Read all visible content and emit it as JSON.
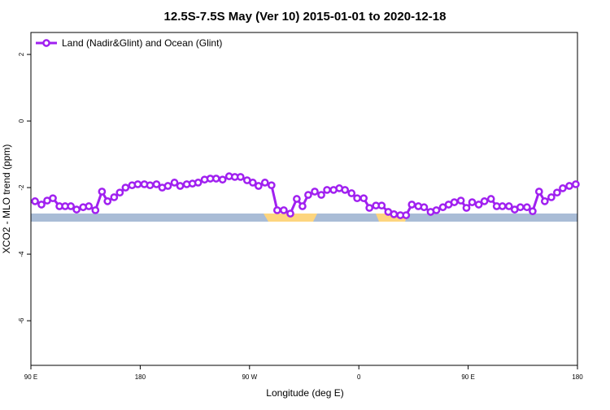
{
  "chart_data": {
    "type": "line",
    "title": "12.5S-7.5S May (Ver 10)   2015-01-01 to 2020-12-18",
    "x_label": "Longitude (deg E)",
    "y_label": "XCO2 - MLO trend (ppm)",
    "xlim": [
      90,
      540
    ],
    "ylim": [
      -7.34,
      2.66
    ],
    "xticks": [
      {
        "value": 90,
        "label": "90 E"
      },
      {
        "value": 180,
        "label": "180"
      },
      {
        "value": 270,
        "label": "90 W"
      },
      {
        "value": 360,
        "label": "0"
      },
      {
        "value": 450,
        "label": "90 E"
      },
      {
        "value": 540,
        "label": "180"
      }
    ],
    "yticks": [
      2,
      0,
      -2,
      -4,
      -6
    ],
    "legend_position": "top-left",
    "series": [
      {
        "name": "Land (Nadir&Glint) and Ocean (Glint)",
        "color": "#a020f0",
        "x": [
          93.4,
          98.7,
          103.4,
          108.1,
          113.5,
          118.2,
          122.9,
          127.6,
          133,
          137.7,
          143.1,
          148.5,
          153.1,
          158.5,
          163.2,
          167.9,
          173.3,
          178,
          183.4,
          188.1,
          193.4,
          198.1,
          202.8,
          208.2,
          212.9,
          218.3,
          223,
          227.7,
          233,
          237.7,
          242.5,
          247.8,
          253.2,
          257.9,
          262.6,
          268,
          272.7,
          277.4,
          282.7,
          288.1,
          292.8,
          298.2,
          303.6,
          308.9,
          313.6,
          318.3,
          323.7,
          329.1,
          333.8,
          339.2,
          343.9,
          348.6,
          354,
          358.6,
          364,
          368.7,
          374.1,
          378.8,
          384.2,
          388.9,
          394.2,
          398.9,
          403.6,
          409,
          413.7,
          419.1,
          423.8,
          429.2,
          433.9,
          438.6,
          444,
          448.6,
          453.3,
          458.7,
          463.4,
          468.8,
          473.5,
          478.2,
          483.6,
          488.3,
          493,
          498.4,
          503.1,
          508.4,
          513.1,
          518.5,
          523.2,
          527.9,
          533.3,
          538.6
        ],
        "values": [
          -2.41,
          -2.51,
          -2.39,
          -2.32,
          -2.56,
          -2.56,
          -2.56,
          -2.66,
          -2.59,
          -2.56,
          -2.68,
          -2.12,
          -2.41,
          -2.29,
          -2.15,
          -2.0,
          -1.93,
          -1.9,
          -1.9,
          -1.93,
          -1.9,
          -2.0,
          -1.95,
          -1.85,
          -1.95,
          -1.9,
          -1.88,
          -1.85,
          -1.76,
          -1.73,
          -1.73,
          -1.76,
          -1.66,
          -1.68,
          -1.68,
          -1.78,
          -1.85,
          -1.95,
          -1.85,
          -1.93,
          -2.68,
          -2.68,
          -2.78,
          -2.34,
          -2.56,
          -2.22,
          -2.12,
          -2.22,
          -2.07,
          -2.07,
          -2.02,
          -2.07,
          -2.17,
          -2.32,
          -2.32,
          -2.61,
          -2.54,
          -2.54,
          -2.73,
          -2.8,
          -2.83,
          -2.83,
          -2.51,
          -2.56,
          -2.59,
          -2.73,
          -2.68,
          -2.59,
          -2.51,
          -2.44,
          -2.39,
          -2.61,
          -2.44,
          -2.51,
          -2.41,
          -2.34,
          -2.56,
          -2.56,
          -2.56,
          -2.66,
          -2.59,
          -2.59,
          -2.71,
          -2.12,
          -2.41,
          -2.29,
          -2.15,
          -2.02,
          -1.95,
          -1.9
        ]
      }
    ]
  }
}
